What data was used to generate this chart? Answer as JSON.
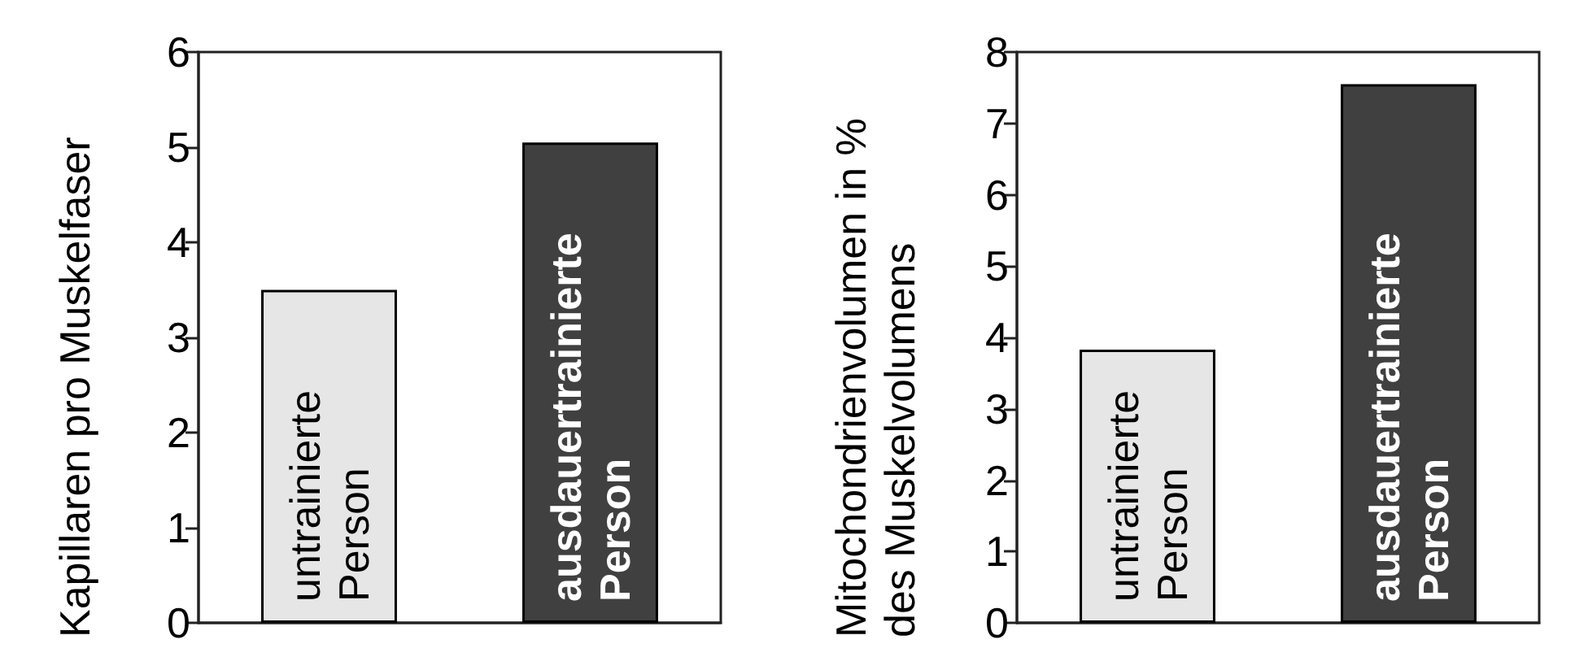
{
  "chart_data": [
    {
      "type": "bar",
      "ylabel": "Kapillaren pro Muskelfaser",
      "categories": [
        "untrainierte Person",
        "ausdauertrainierte Person"
      ],
      "values": [
        3.5,
        5.05
      ],
      "colors": [
        "#e6e6e6",
        "#404040"
      ],
      "ylim": [
        0,
        6
      ],
      "yticks": [
        0,
        1,
        2,
        3,
        4,
        5,
        6
      ],
      "tick_labels": "y"
    },
    {
      "type": "bar",
      "ylabel": "Mitochondrienvolumen in % des Muskelvolumens",
      "categories": [
        "untrainierte Person",
        "ausdauertrainierte Person"
      ],
      "values": [
        3.83,
        7.55
      ],
      "colors": [
        "#e6e6e6",
        "#404040"
      ],
      "ylim": [
        0,
        8
      ],
      "yticks": [
        0,
        1,
        2,
        3,
        4,
        5,
        6,
        7,
        8
      ],
      "tick_labels": "y"
    }
  ]
}
